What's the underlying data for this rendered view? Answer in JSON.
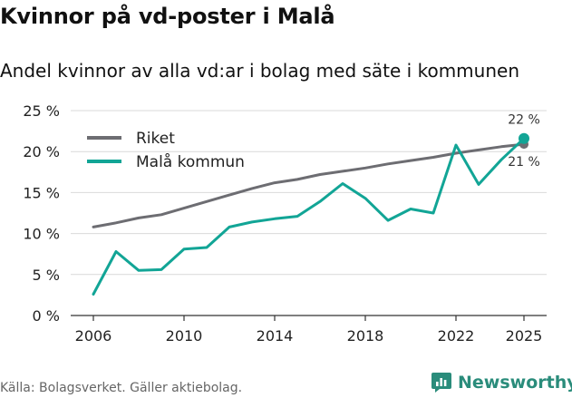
{
  "header": {
    "title": "Kvinnor på vd-poster i Malå",
    "subtitle": "Andel kvinnor av alla vd:ar i bolag med säte i kommunen"
  },
  "footer": {
    "source": "Källa: Bolagsverket. Gäller aktiebolag.",
    "brand": "Newsworthy"
  },
  "colors": {
    "riket": "#6d6d72",
    "kommun": "#12a596",
    "grid": "#d9d9d9",
    "brand": "#2a8c7b"
  },
  "chart_data": {
    "type": "line",
    "x": [
      2006,
      2007,
      2008,
      2009,
      2010,
      2011,
      2012,
      2013,
      2014,
      2015,
      2016,
      2017,
      2018,
      2019,
      2020,
      2021,
      2022,
      2023,
      2024,
      2025
    ],
    "series": [
      {
        "name": "Riket",
        "color": "#6d6d72",
        "values": [
          10.8,
          11.3,
          11.9,
          12.3,
          13.1,
          13.9,
          14.7,
          15.5,
          16.2,
          16.6,
          17.2,
          17.6,
          18.0,
          18.5,
          18.9,
          19.3,
          19.8,
          20.2,
          20.6,
          20.9
        ],
        "end_label": "21 %"
      },
      {
        "name": "Malå kommun",
        "color": "#12a596",
        "values": [
          2.6,
          7.8,
          5.5,
          5.6,
          8.1,
          8.3,
          10.8,
          11.4,
          11.8,
          12.1,
          13.9,
          16.1,
          14.3,
          11.6,
          13.0,
          12.5,
          20.8,
          16.0,
          19.0,
          21.6
        ],
        "end_label": "22 %"
      }
    ],
    "x_ticks": [
      2006,
      2010,
      2014,
      2018,
      2022,
      2025
    ],
    "y_ticks": [
      0,
      5,
      10,
      15,
      20,
      25
    ],
    "y_tick_labels": [
      "0 %",
      "5 %",
      "10 %",
      "15 %",
      "20 %",
      "25 %"
    ],
    "ylim": [
      0,
      25
    ],
    "xlim": [
      2006,
      2025
    ],
    "grid": true,
    "legend": "top-left"
  }
}
